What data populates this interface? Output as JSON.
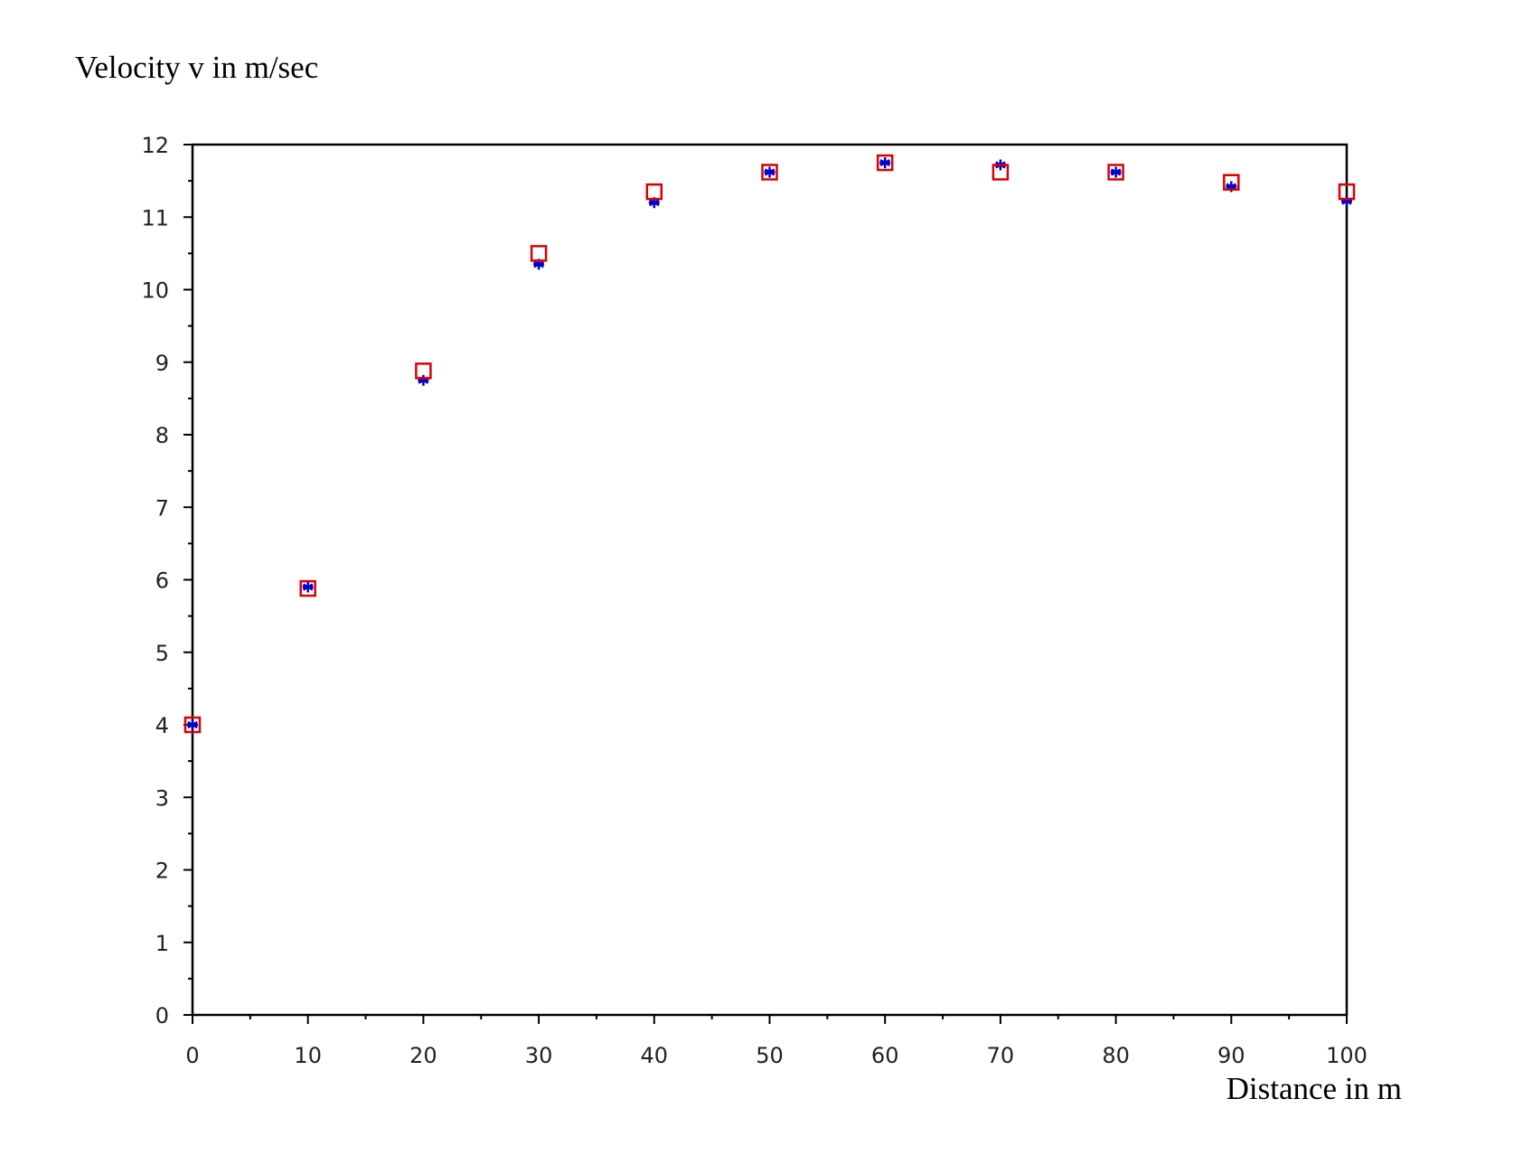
{
  "chart_data": {
    "type": "scatter",
    "y_label": "Velocity v in m/sec",
    "x_label": "Distance in m",
    "x": [
      0,
      10,
      20,
      30,
      40,
      50,
      60,
      70,
      80,
      90,
      100
    ],
    "series": [
      {
        "color": "#0000cc",
        "marker": "asterisk",
        "values": [
          4.0,
          5.9,
          8.75,
          10.35,
          11.2,
          11.62,
          11.75,
          11.72,
          11.62,
          11.42,
          11.22
        ]
      },
      {
        "color": "#dd0000",
        "marker": "square",
        "values": [
          4.0,
          5.88,
          8.88,
          10.5,
          11.35,
          11.62,
          11.75,
          11.62,
          11.62,
          11.48,
          11.35
        ]
      }
    ],
    "xlim": [
      0,
      100
    ],
    "xticks": [
      0,
      10,
      20,
      30,
      40,
      50,
      60,
      70,
      80,
      90,
      100
    ],
    "ylim": [
      0,
      12
    ],
    "yticks": [
      0,
      1,
      2,
      3,
      4,
      5,
      6,
      7,
      8,
      9,
      10,
      11,
      12
    ],
    "grid": false
  }
}
